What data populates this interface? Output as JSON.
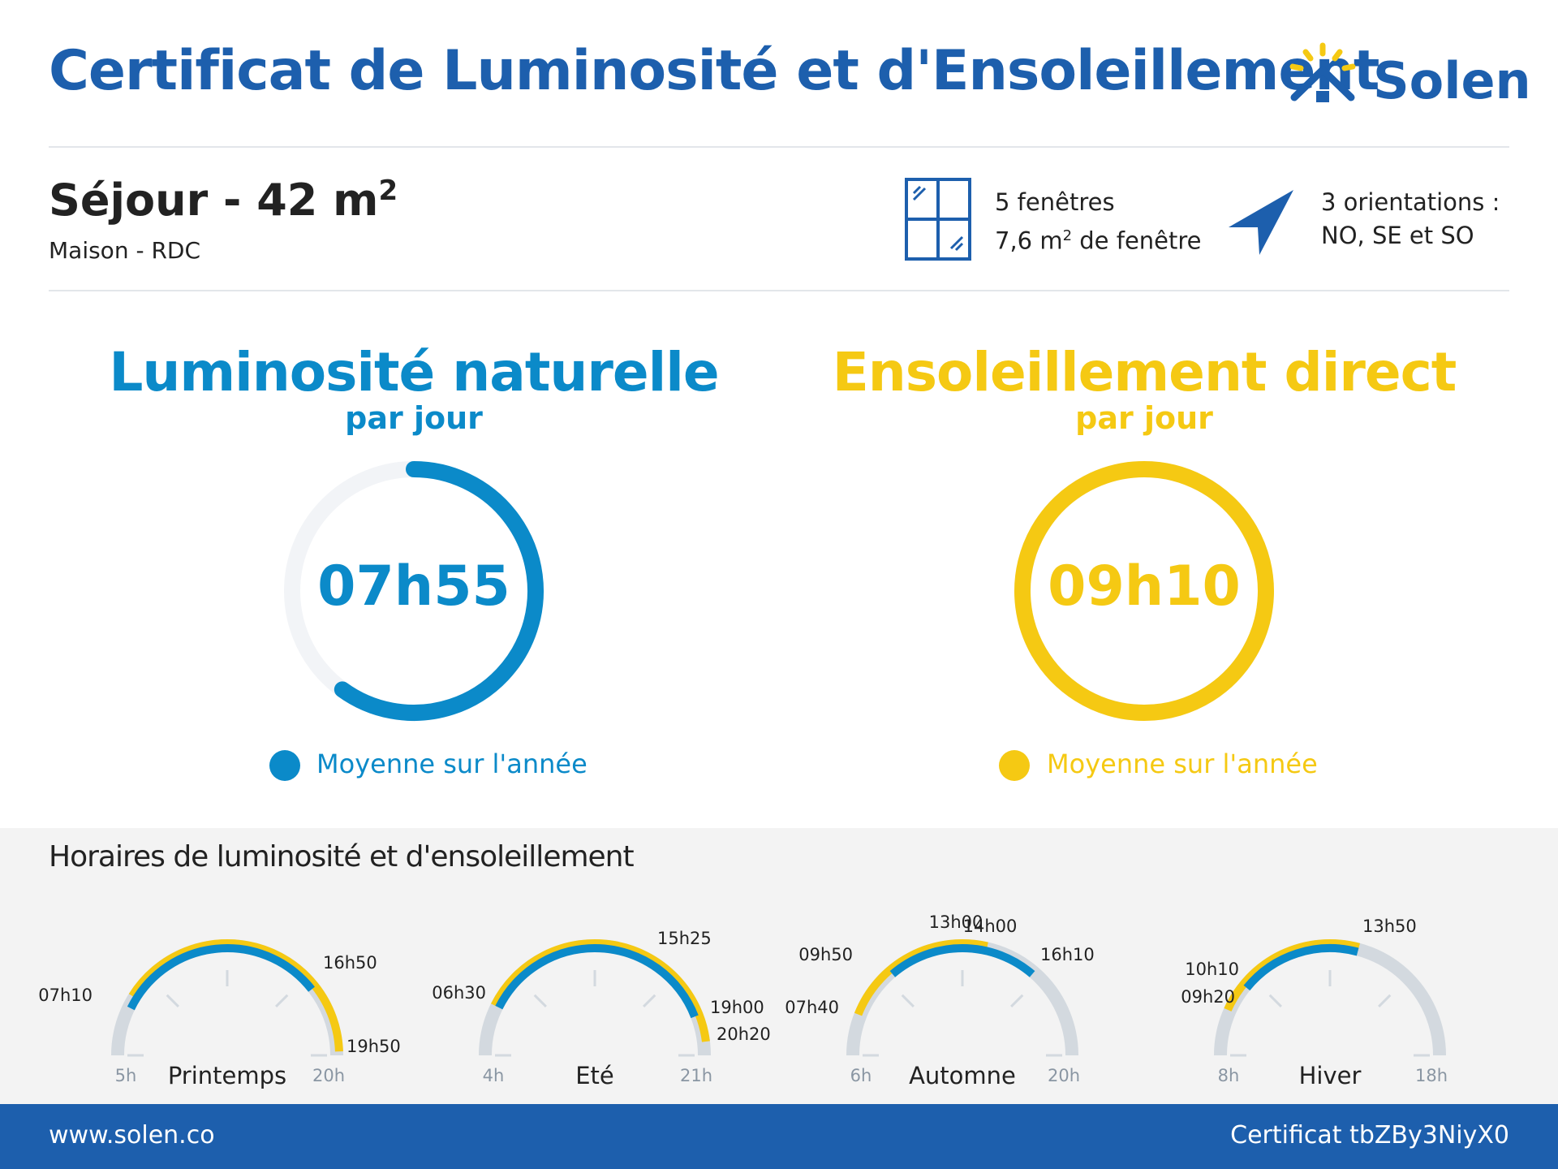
{
  "header": {
    "title": "Certificat de Luminosité et d'Ensoleillement",
    "brand": "Solen"
  },
  "room": {
    "name": "Séjour - 42 m",
    "name_sup": "2",
    "subtitle": "Maison - RDC"
  },
  "windows": {
    "line1": "5 fenêtres",
    "line2_pre": "7,6 m",
    "line2_sup": "2",
    "line2_post": " de fenêtre"
  },
  "orientations": {
    "line1": "3 orientations :",
    "line2": "NO, SE et SO"
  },
  "luminosite": {
    "title": "Luminosité naturelle",
    "subtitle": "par jour",
    "value": "07h55",
    "fraction": 0.6,
    "legend": "Moyenne sur l'année",
    "color": "#0b8ac9"
  },
  "ensoleillement": {
    "title": "Ensoleillement direct",
    "subtitle": "par jour",
    "value": "09h10",
    "fraction": 1.0,
    "legend": "Moyenne sur l'année",
    "color": "#f5c913"
  },
  "horaires": {
    "title": "Horaires de luminosité et d'ensoleillement",
    "seasons": [
      {
        "name": "Printemps",
        "start_label": "5h",
        "end_label": "20h",
        "start_h": 5,
        "end_h": 20,
        "sun": [
          7.667,
          19.833
        ],
        "light": [
          7.167,
          16.833
        ],
        "labels": [
          "07h10",
          "16h50",
          "19h50"
        ]
      },
      {
        "name": "Eté",
        "start_label": "4h",
        "end_label": "21h",
        "start_h": 4,
        "end_h": 21,
        "sun": [
          6.5,
          20.333
        ],
        "light": [
          6.5,
          19.0
        ],
        "labels": [
          "06h30",
          "15h25",
          "19h00",
          "20h20"
        ]
      },
      {
        "name": "Automne",
        "start_label": "6h",
        "end_label": "20h",
        "start_h": 6,
        "end_h": 20,
        "sun": [
          7.667,
          14.0
        ],
        "light": [
          9.833,
          16.167
        ],
        "labels": [
          "07h40",
          "09h50",
          "13h00",
          "14h00",
          "16h10"
        ]
      },
      {
        "name": "Hiver",
        "start_label": "8h",
        "end_label": "18h",
        "start_h": 8,
        "end_h": 18,
        "sun": [
          9.333,
          13.833
        ],
        "light": [
          10.167,
          13.833
        ],
        "labels": [
          "09h20",
          "10h10",
          "13h50"
        ]
      }
    ]
  },
  "footer": {
    "website": "www.solen.co",
    "certificate": "Certificat tbZBy3NiyX0"
  },
  "colors": {
    "brand_blue": "#1d5fad",
    "light_blue": "#0b8ac9",
    "yellow": "#f5c913",
    "track": "#d3d9df"
  }
}
